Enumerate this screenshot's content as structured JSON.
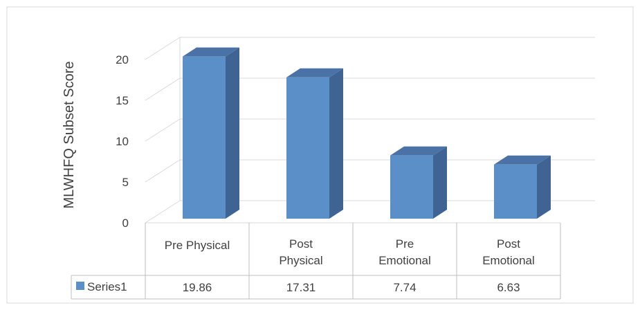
{
  "chart_data": {
    "type": "bar",
    "title": "",
    "xlabel": "",
    "ylabel": "MLWHFQ Subset Score",
    "ylim": [
      0,
      20
    ],
    "y_ticks": [
      "0",
      "5",
      "10",
      "15",
      "20"
    ],
    "categories": [
      [
        "Pre Physical"
      ],
      [
        "Post",
        "Physical"
      ],
      [
        "Pre",
        "Emotional"
      ],
      [
        "Post",
        "Emotional"
      ]
    ],
    "series": [
      {
        "name": "Series1",
        "values": [
          19.86,
          17.31,
          7.74,
          6.63
        ],
        "labels": [
          "19.86",
          "17.31",
          "7.74",
          "6.63"
        ]
      }
    ],
    "grid": true,
    "three_d": true,
    "legend": "data-table-left",
    "colors": {
      "front": "#5b8fc8",
      "top": "#4a72a6",
      "side": "#3f6494",
      "grid": "#d9d9d9",
      "table": "#bfbfbf",
      "border": "#d9d9d9"
    }
  }
}
